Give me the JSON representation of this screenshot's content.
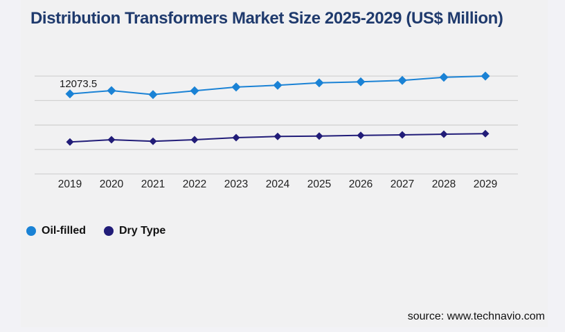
{
  "title": {
    "text": "Distribution Transformers Market Size 2025-2029 (US$ Million)",
    "color": "#1f3a6d"
  },
  "source": {
    "text": "source: www.technavio.com"
  },
  "legend": [
    {
      "label": "Oil-filled",
      "color": "#1a82d5"
    },
    {
      "label": "Dry Type",
      "color": "#211c78"
    }
  ],
  "colors": {
    "background": "#f2f2f6",
    "panel": "#f1f1f2",
    "gridline": "#d2d2d2",
    "axis_text": "#1f1f1f",
    "data_label": "#1a1a1a"
  },
  "chart_data": {
    "type": "line",
    "title": "Distribution Transformers Market Size 2025-2029 (US$ Million)",
    "xlabel": "",
    "ylabel": "US$ Million",
    "categories": [
      2019,
      2020,
      2021,
      2022,
      2023,
      2024,
      2025,
      2026,
      2027,
      2028,
      2029
    ],
    "series": [
      {
        "name": "Oil-filled",
        "color": "#1a82d5",
        "marker": "diamond",
        "values": [
          12073.5,
          12560,
          11970,
          12530,
          13090,
          13370,
          13740,
          13890,
          14100,
          14580,
          14750
        ]
      },
      {
        "name": "Dry Type",
        "color": "#211c78",
        "marker": "diamond",
        "values": [
          4820,
          5160,
          4920,
          5160,
          5470,
          5650,
          5710,
          5820,
          5890,
          6000,
          6070
        ]
      }
    ],
    "data_labels": [
      {
        "series": "Oil-filled",
        "category": 2019,
        "text": "12073.5"
      }
    ],
    "ylim": [
      0,
      16400
    ],
    "grid": "horizontal",
    "gridline_count": 5,
    "y_axis_labels_visible": false,
    "legend_position": "bottom-left"
  }
}
